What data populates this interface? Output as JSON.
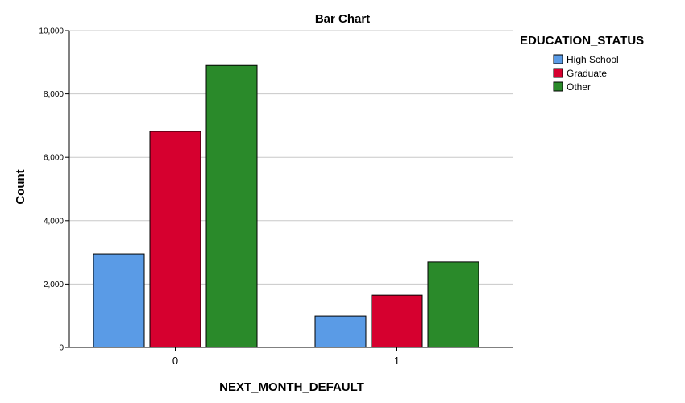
{
  "chart_data": {
    "type": "bar",
    "title": "Bar Chart",
    "xlabel": "NEXT_MONTH_DEFAULT",
    "ylabel": "Count",
    "categories": [
      "0",
      "1"
    ],
    "series": [
      {
        "name": "High School",
        "values": [
          2950,
          990
        ],
        "color": "#5a9be6"
      },
      {
        "name": "Graduate",
        "values": [
          6820,
          1650
        ],
        "color": "#d6002f"
      },
      {
        "name": "Other",
        "values": [
          8900,
          2700
        ],
        "color": "#2a8a2a"
      }
    ],
    "ylim": [
      0,
      10000
    ],
    "yticks": [
      0,
      2000,
      4000,
      6000,
      8000,
      10000
    ],
    "ytick_labels": [
      "0",
      "2,000",
      "4,000",
      "6,000",
      "8,000",
      "10,000"
    ],
    "grid": true,
    "legend": {
      "title": "EDUCATION_STATUS",
      "placement": "top-right outside"
    }
  }
}
